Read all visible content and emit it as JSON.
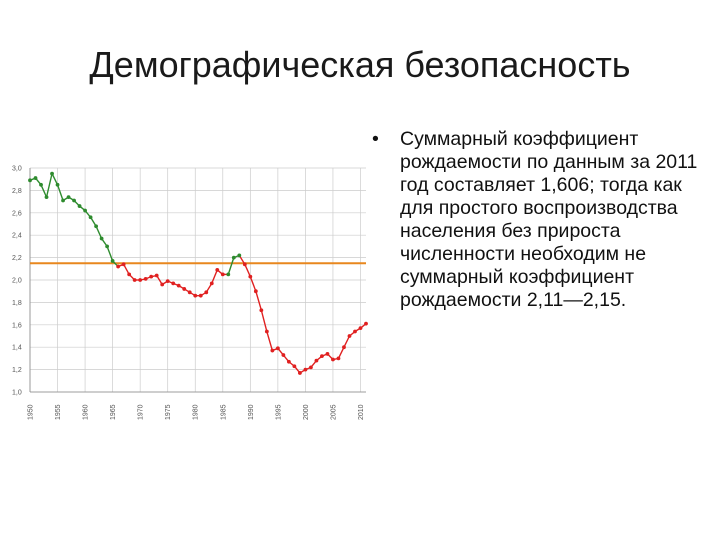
{
  "slide": {
    "title": "Демографическая безопасность",
    "bullet_symbol": "•",
    "bullet_text": "Суммарный коэффициент рождаемости по данным за 2011 год составляет 1,606; тогда как для простого воспроизводства населения без прироста численности необходим не суммарный коэффициент рождаемости 2,11—2,15."
  },
  "chart_data": {
    "type": "line",
    "title": "",
    "xlabel": "",
    "ylabel": "",
    "xlim": [
      1950,
      2011
    ],
    "ylim": [
      1.0,
      3.0
    ],
    "grid": true,
    "y_ticks": [
      "1,0",
      "1,2",
      "1,4",
      "1,6",
      "1,8",
      "2,0",
      "2,2",
      "2,4",
      "2,6",
      "2,8",
      "3,0"
    ],
    "x_ticks": [
      "1950",
      "1955",
      "1960",
      "1965",
      "1970",
      "1975",
      "1980",
      "1985",
      "1990",
      "1995",
      "2000",
      "2005",
      "2010"
    ],
    "reference_line": {
      "y": 2.15,
      "color": "#e8871e"
    },
    "series_colors": {
      "above_replacement": "#2e8b2e",
      "below_replacement": "#e02020",
      "grid": "#cccccc",
      "axis": "#888888"
    },
    "x": [
      1950,
      1951,
      1952,
      1953,
      1954,
      1955,
      1956,
      1957,
      1958,
      1959,
      1960,
      1961,
      1962,
      1963,
      1964,
      1965,
      1966,
      1967,
      1968,
      1969,
      1970,
      1971,
      1972,
      1973,
      1974,
      1975,
      1976,
      1977,
      1978,
      1979,
      1980,
      1981,
      1982,
      1983,
      1984,
      1985,
      1986,
      1987,
      1988,
      1989,
      1990,
      1991,
      1992,
      1993,
      1994,
      1995,
      1996,
      1997,
      1998,
      1999,
      2000,
      2001,
      2002,
      2003,
      2004,
      2005,
      2006,
      2007,
      2008,
      2009,
      2010,
      2011
    ],
    "values": [
      2.89,
      2.91,
      2.85,
      2.74,
      2.95,
      2.85,
      2.71,
      2.74,
      2.71,
      2.66,
      2.62,
      2.56,
      2.48,
      2.37,
      2.3,
      2.17,
      2.12,
      2.14,
      2.05,
      2.0,
      2.0,
      2.01,
      2.03,
      2.04,
      1.96,
      1.99,
      1.97,
      1.95,
      1.92,
      1.89,
      1.86,
      1.86,
      1.89,
      1.97,
      2.09,
      2.05,
      2.05,
      2.2,
      2.22,
      2.14,
      2.03,
      1.9,
      1.73,
      1.54,
      1.37,
      1.39,
      1.33,
      1.27,
      1.23,
      1.17,
      1.2,
      1.22,
      1.28,
      1.32,
      1.34,
      1.29,
      1.3,
      1.4,
      1.5,
      1.54,
      1.57,
      1.61
    ]
  }
}
